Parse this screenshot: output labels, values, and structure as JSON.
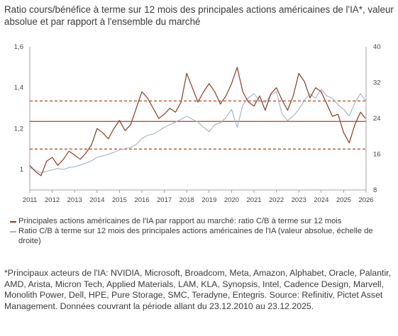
{
  "title": "Ratio cours/bénéfice à terme sur 12 mois des principales actions américaines de l'IA*, valeur absolue et par rapport à l'ensemble du marché",
  "footnote": "*Principaux acteurs de l'IA: NVIDIA, Microsoft, Broadcom, Meta, Amazon, Alphabet, Oracle, Palantir, AMD, Arista, Micron Tech, Applied Materials, LAM, KLA, Synopsis, Intel, Cadence Design, Marvell, Monolith Power, Dell, HPE, Pure Storage, SMC, Teradyne, Entegris. Source: Refinitiv, Pictet Asset Management. Données couvrant la période allant du 23.12.2010 au 23.12.2025.",
  "colors": {
    "relative": "#8a3b1e",
    "absolute": "#9fb2c8",
    "reference": "#c0512b"
  },
  "chart_data": {
    "type": "line",
    "x_ticks": [
      "2011",
      "2012",
      "2013",
      "2014",
      "2015",
      "2016",
      "2017",
      "2018",
      "2019",
      "2020",
      "2021",
      "2022",
      "2023",
      "2024",
      "2025",
      "2026"
    ],
    "y_left": {
      "ylim": [
        0.9,
        1.6
      ],
      "ticks": [
        "1",
        "1,2",
        "1,4",
        "1,6"
      ],
      "tick_values": [
        1,
        1.2,
        1.4,
        1.6
      ]
    },
    "y_right": {
      "ylim": [
        8,
        40
      ],
      "ticks": [
        "8",
        "16",
        "24",
        "32",
        "40"
      ],
      "tick_values": [
        8,
        16,
        24,
        32,
        40
      ]
    },
    "reference_lines": [
      {
        "axis": "left",
        "value": 1.235,
        "style": "solid"
      },
      {
        "axis": "left",
        "value": 1.335,
        "style": "dashed"
      },
      {
        "axis": "left",
        "value": 1.1,
        "style": "dashed"
      }
    ],
    "series": [
      {
        "name": "Principales actions américaines de l'IA par rapport au marché: ratio C/B à terme sur 12 mois",
        "axis": "left",
        "x": [
          2011.0,
          2011.25,
          2011.5,
          2011.75,
          2012.0,
          2012.25,
          2012.5,
          2012.75,
          2013.0,
          2013.25,
          2013.5,
          2013.75,
          2014.0,
          2014.25,
          2014.5,
          2014.75,
          2015.0,
          2015.25,
          2015.5,
          2015.75,
          2016.0,
          2016.25,
          2016.5,
          2016.75,
          2017.0,
          2017.25,
          2017.5,
          2017.75,
          2018.0,
          2018.25,
          2018.5,
          2018.75,
          2019.0,
          2019.25,
          2019.5,
          2019.75,
          2020.0,
          2020.25,
          2020.5,
          2020.75,
          2021.0,
          2021.25,
          2021.5,
          2021.75,
          2022.0,
          2022.25,
          2022.5,
          2022.75,
          2023.0,
          2023.25,
          2023.5,
          2023.75,
          2024.0,
          2024.25,
          2024.5,
          2024.75,
          2025.0,
          2025.25,
          2025.5,
          2025.75,
          2025.97
        ],
        "values": [
          1.02,
          0.99,
          0.97,
          1.04,
          1.06,
          1.02,
          1.05,
          1.09,
          1.07,
          1.05,
          1.08,
          1.12,
          1.2,
          1.18,
          1.15,
          1.2,
          1.24,
          1.19,
          1.22,
          1.3,
          1.38,
          1.35,
          1.3,
          1.25,
          1.27,
          1.3,
          1.28,
          1.33,
          1.47,
          1.4,
          1.33,
          1.38,
          1.42,
          1.38,
          1.32,
          1.36,
          1.42,
          1.5,
          1.38,
          1.33,
          1.31,
          1.36,
          1.29,
          1.37,
          1.4,
          1.34,
          1.29,
          1.36,
          1.47,
          1.43,
          1.35,
          1.4,
          1.38,
          1.32,
          1.26,
          1.27,
          1.18,
          1.13,
          1.22,
          1.28,
          1.25
        ]
      },
      {
        "name": "Ratio C/B à terme sur 12 mois des principales actions américaines de l'IA (valeur absolue, échelle de droite)",
        "axis": "right",
        "x": [
          2011.0,
          2011.25,
          2011.5,
          2011.75,
          2012.0,
          2012.25,
          2012.5,
          2012.75,
          2013.0,
          2013.25,
          2013.5,
          2013.75,
          2014.0,
          2014.25,
          2014.5,
          2014.75,
          2015.0,
          2015.25,
          2015.5,
          2015.75,
          2016.0,
          2016.25,
          2016.5,
          2016.75,
          2017.0,
          2017.25,
          2017.5,
          2017.75,
          2018.0,
          2018.25,
          2018.5,
          2018.75,
          2019.0,
          2019.25,
          2019.5,
          2019.75,
          2020.0,
          2020.25,
          2020.5,
          2020.75,
          2021.0,
          2021.25,
          2021.5,
          2021.75,
          2022.0,
          2022.25,
          2022.5,
          2022.75,
          2023.0,
          2023.25,
          2023.5,
          2023.75,
          2024.0,
          2024.25,
          2024.5,
          2024.75,
          2025.0,
          2025.25,
          2025.5,
          2025.75,
          2025.97
        ],
        "values": [
          13.0,
          12.5,
          11.8,
          12.2,
          12.5,
          12.8,
          12.6,
          13.0,
          13.2,
          13.6,
          14.0,
          14.5,
          15.3,
          15.6,
          16.0,
          16.4,
          17.0,
          17.2,
          17.5,
          18.2,
          19.5,
          20.2,
          20.5,
          21.2,
          22.0,
          22.6,
          23.2,
          23.8,
          24.5,
          23.8,
          23.2,
          22.0,
          21.0,
          22.6,
          23.0,
          24.2,
          26.0,
          22.0,
          27.0,
          28.6,
          29.5,
          28.0,
          27.5,
          29.2,
          30.0,
          25.0,
          23.5,
          24.5,
          26.0,
          28.0,
          29.5,
          28.5,
          30.5,
          29.0,
          28.5,
          27.0,
          26.0,
          24.5,
          27.5,
          29.5,
          28.0
        ]
      }
    ]
  }
}
